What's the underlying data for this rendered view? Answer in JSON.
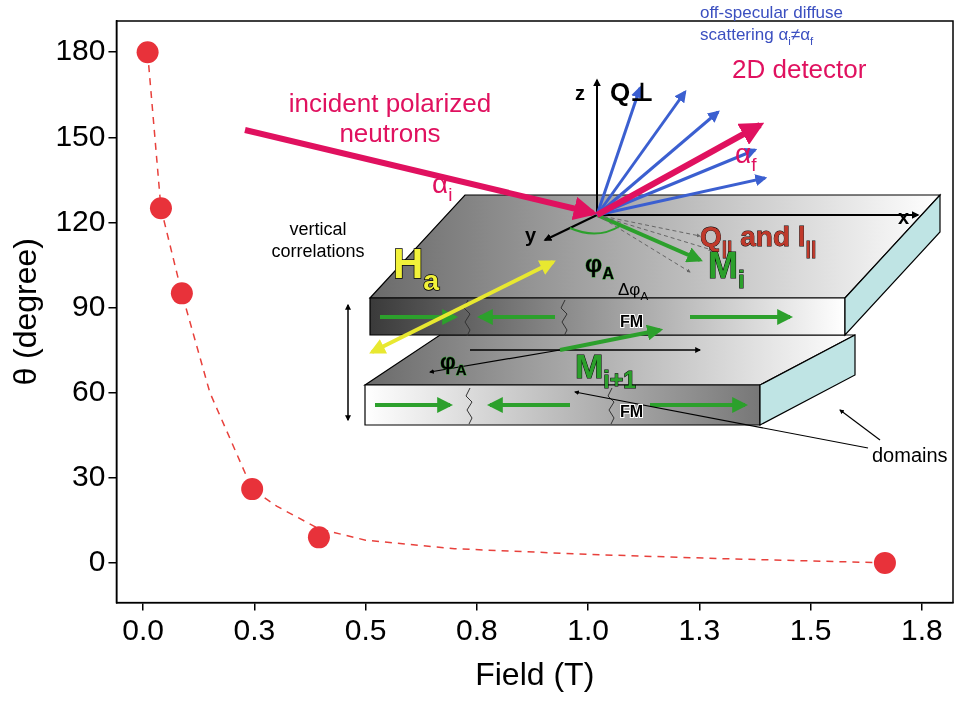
{
  "chart_data": {
    "type": "scatter",
    "x_label": "Field (T)",
    "y_label": "θ (degree)",
    "xlim": [
      -0.06,
      1.82
    ],
    "ylim": [
      -14,
      191
    ],
    "xticks": [
      {
        "value": 0,
        "label": "0.0"
      },
      {
        "value": 0.25,
        "label": "0.3"
      },
      {
        "value": 0.5,
        "label": "0.5"
      },
      {
        "value": 0.75,
        "label": "0.8"
      },
      {
        "value": 1.0,
        "label": "1.0"
      },
      {
        "value": 1.25,
        "label": "1.3"
      },
      {
        "value": 1.5,
        "label": "1.5"
      },
      {
        "value": 1.75,
        "label": "1.8"
      }
    ],
    "yticks": [
      0,
      30,
      60,
      90,
      120,
      150,
      180
    ],
    "grid": false,
    "series": [
      {
        "type": "line",
        "line_style": "dashed",
        "marker": "none",
        "color": "#e8413c",
        "x": [
          0.01,
          0.04,
          0.087,
          0.15,
          0.245,
          0.3,
          0.395,
          0.5,
          0.7,
          1.0,
          1.3,
          1.67
        ],
        "values": [
          180,
          125,
          95,
          60,
          26,
          20,
          12,
          8,
          5,
          3,
          1.5,
          0
        ]
      },
      {
        "type": "scatter",
        "marker": "circle",
        "color": "#e8323a",
        "x": [
          0.01,
          0.04,
          0.087,
          0.245,
          0.395,
          1.667
        ],
        "values": [
          180,
          125,
          95,
          26,
          9,
          0
        ]
      }
    ]
  },
  "inset": {
    "incident": [
      [
        "incident polarized"
      ],
      [
        "neutrons"
      ]
    ],
    "off_specular": [
      [
        "off-specular diffuse"
      ],
      [
        "scattering α",
        {
          "text": "i",
          "sub": true
        },
        "≠α",
        {
          "text": "f",
          "sub": true
        }
      ]
    ],
    "detector": [
      [
        "2D detector"
      ]
    ],
    "z": [
      [
        "z"
      ]
    ],
    "q_perp": [
      [
        "Q⊥"
      ]
    ],
    "x": [
      [
        "x"
      ]
    ],
    "q_par": [
      [
        "Q",
        {
          "text": "||",
          "sub": true
        },
        " and l",
        {
          "text": "||",
          "sub": true
        }
      ]
    ],
    "y": [
      [
        "y"
      ]
    ],
    "alpha_i": [
      [
        "α",
        {
          "text": "i",
          "sub": true
        }
      ]
    ],
    "alpha_f": [
      [
        "α",
        {
          "text": "f",
          "sub": true
        }
      ]
    ],
    "phi_a_top": [
      [
        "φ",
        {
          "text": "A",
          "sub": true
        }
      ]
    ],
    "phi_a_bottom": [
      [
        "φ",
        {
          "text": "A",
          "sub": true
        }
      ]
    ],
    "dphi": [
      [
        "Δφ",
        {
          "text": "A",
          "sub": true
        }
      ]
    ],
    "m_i": [
      [
        "M",
        {
          "text": "i",
          "sub": true
        }
      ]
    ],
    "m_i1": [
      [
        "M",
        {
          "text": "i+1",
          "sub": true
        }
      ]
    ],
    "h_a": [
      [
        "H",
        {
          "text": "a",
          "sub": true
        }
      ]
    ],
    "vertical": [
      [
        "vertical"
      ],
      [
        "correlations"
      ]
    ],
    "fm_top": [
      [
        "FM"
      ]
    ],
    "fm_bottom": [
      [
        "FM"
      ]
    ],
    "domains": [
      [
        "domains"
      ]
    ]
  }
}
